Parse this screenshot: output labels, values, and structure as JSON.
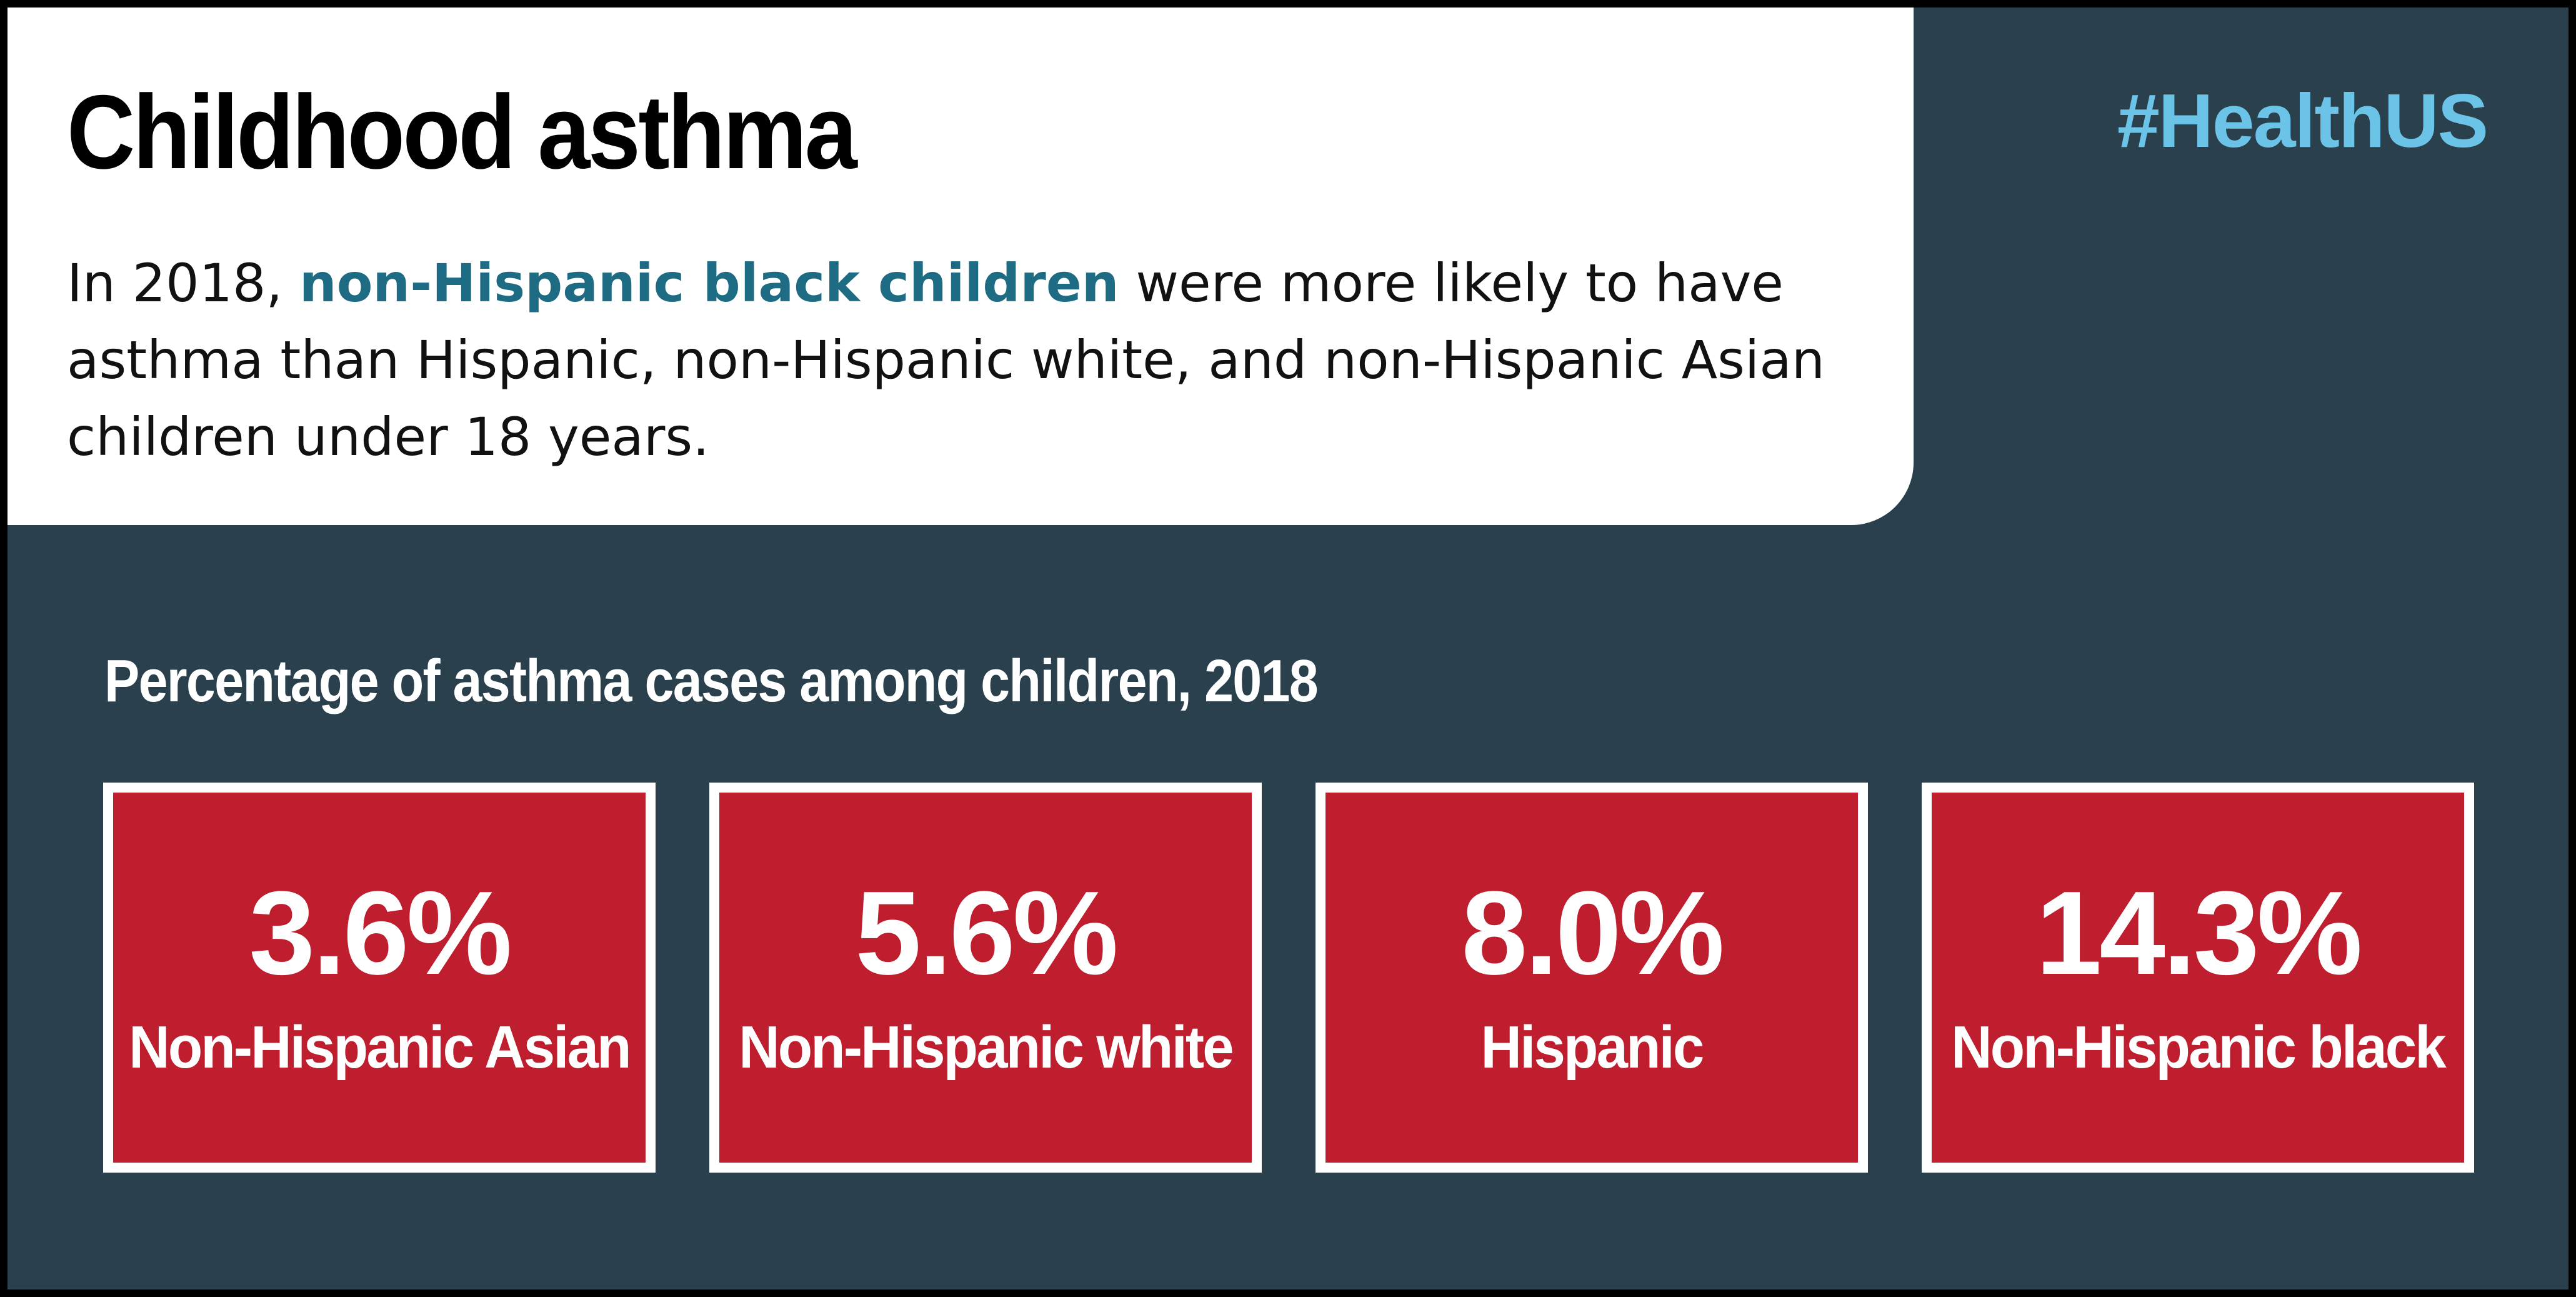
{
  "header": {
    "title": "Childhood asthma",
    "hashtag": "#HealthUS",
    "intro_before": "In 2018, ",
    "intro_highlight": "non-Hispanic black children",
    "intro_after": " were more likely to have asthma than Hispanic, non-Hispanic white, and non-Hispanic Asian children under 18 years."
  },
  "colors": {
    "background": "#2a404d",
    "card": "#be1e2d",
    "highlight": "#1e6b84",
    "hashtag": "#6bc4e8"
  },
  "chart_data": {
    "type": "table",
    "title": "Percentage of asthma cases among children, 2018",
    "categories": [
      "Non-Hispanic Asian",
      "Non-Hispanic white",
      "Hispanic",
      "Non-Hispanic black"
    ],
    "values": [
      3.6,
      5.6,
      8.0,
      14.3
    ],
    "value_labels": [
      "3.6%",
      "5.6%",
      "8.0%",
      "14.3%"
    ],
    "unit": "%"
  }
}
